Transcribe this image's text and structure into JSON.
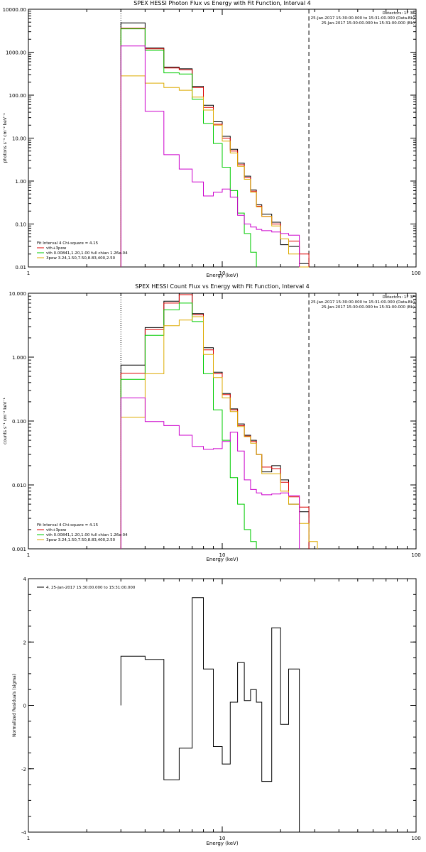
{
  "chart_data": [
    {
      "type": "line",
      "title": "SPEX HESSI Photon Flux vs Energy with Fit Function, Interval 4",
      "xlabel": "Energy (keV)",
      "ylabel": "photons s⁻¹ cm⁻² keV⁻¹",
      "xscale": "log",
      "yscale": "log",
      "xlim": [
        1,
        100
      ],
      "ylim": [
        0.01,
        10000
      ],
      "x_ticks": [
        "1",
        "10",
        "100"
      ],
      "y_ticks": [
        "0.01",
        "0.10",
        "1.00",
        "10.00",
        "100.00",
        "1000.00",
        "10000.00"
      ],
      "y_tick_values": [
        0.01,
        0.1,
        1,
        10,
        100,
        1000,
        10000
      ],
      "header_lines": [
        "Detectors: 1F 3F",
        "25-Jan-2017 15:30:00.000 to 15:31:00.000 (Data-Bk)",
        "25-Jan-2017 15:30:00.000 to 15:31:00.000 (Bk)"
      ],
      "legend_lines": [
        "Fit Interval 4   Chi-square = 4.15",
        "vth+3pow",
        "vth 0.00841,1.20,1.00  full chian 1.26e-04",
        "3pow 3.24,1.50,7.50,8.83,400,2.50"
      ],
      "vlines": [
        {
          "x": 3.0,
          "style": "dotted"
        },
        {
          "x": 28.0,
          "style": "dashed"
        }
      ],
      "bin_edges": [
        3,
        4,
        5,
        6,
        7,
        8,
        9,
        10,
        11,
        12,
        13,
        14,
        15,
        16,
        18,
        20,
        22,
        25,
        28,
        31
      ],
      "series": [
        {
          "name": "",
          "color": "#000000",
          "values": [
            4800,
            1250,
            450,
            410,
            160,
            58,
            24,
            11,
            5.5,
            2.6,
            1.3,
            0.62,
            0.28,
            0.17,
            0.11,
            0.033,
            0.03,
            0.012,
            null
          ]
        },
        {
          "name": "vth+3pow",
          "color": "#dd0000",
          "values": [
            3600,
            1200,
            430,
            390,
            150,
            52,
            21,
            10,
            5,
            2.4,
            1.2,
            0.58,
            0.26,
            0.15,
            0.1,
            0.045,
            0.04,
            0.02,
            null
          ]
        },
        {
          "name": "vth 0.00841,1.20,1.00  full chian 1.26e-04",
          "color": "#00cc00",
          "values": [
            3500,
            1100,
            330,
            310,
            80,
            22,
            7.5,
            2.1,
            0.6,
            0.18,
            0.06,
            0.022,
            null,
            null,
            null,
            null,
            null,
            null,
            null
          ]
        },
        {
          "name": "3pow 3.24,1.50,7.50,8.83,400,2.50",
          "color": "#ddaa00",
          "values": [
            280,
            190,
            150,
            130,
            90,
            45,
            20,
            8.5,
            4.5,
            2.2,
            1.1,
            0.55,
            0.25,
            0.15,
            0.09,
            0.045,
            0.02,
            0.01,
            null
          ]
        },
        {
          "name": "",
          "color": "#cc00cc",
          "values": [
            1400,
            42,
            4.1,
            1.9,
            0.95,
            0.45,
            0.55,
            0.65,
            0.42,
            0.16,
            0.1,
            0.085,
            0.075,
            0.07,
            0.065,
            0.06,
            0.055,
            null,
            null
          ]
        }
      ]
    },
    {
      "type": "line",
      "title": "SPEX HESSI Count Flux vs Energy with Fit Function, Interval 4",
      "xlabel": "Energy (keV)",
      "ylabel": "counts s⁻¹ cm⁻² keV⁻¹",
      "xscale": "log",
      "yscale": "log",
      "xlim": [
        1,
        100
      ],
      "ylim": [
        0.001,
        10
      ],
      "x_ticks": [
        "1",
        "10",
        "100"
      ],
      "y_ticks": [
        "0.001",
        "0.010",
        "0.100",
        "1.000",
        "10.000"
      ],
      "y_tick_values": [
        0.001,
        0.01,
        0.1,
        1,
        10
      ],
      "header_lines": [
        "Detectors: 1F 3F",
        "25-Jan-2017 15:30:00.000 to 15:31:00.000 (Data-Bk)",
        "25-Jan-2017 15:30:00.000 to 15:31:00.000 (Bk)"
      ],
      "legend_lines": [
        "Fit Interval 4   Chi-square = 4.15",
        "vth+3pow",
        "vth 0.00841,1.20,1.00  full chian 1.26e-04",
        "3pow 3.24,1.50,7.50,8.83,400,2.50"
      ],
      "vlines": [
        {
          "x": 3.0,
          "style": "dotted"
        },
        {
          "x": 28.0,
          "style": "dashed"
        }
      ],
      "bin_edges": [
        3,
        4,
        5,
        6,
        7,
        8,
        9,
        10,
        11,
        12,
        13,
        14,
        15,
        16,
        18,
        20,
        22,
        25,
        28,
        31
      ],
      "series": [
        {
          "name": "",
          "color": "#000000",
          "values": [
            0.75,
            2.9,
            7.5,
            10.2,
            4.8,
            1.4,
            0.58,
            0.27,
            0.155,
            0.09,
            0.06,
            0.05,
            0.03,
            0.016,
            0.02,
            0.012,
            0.005,
            0.0038,
            null
          ]
        },
        {
          "name": "vth+3pow",
          "color": "#dd0000",
          "values": [
            0.56,
            2.7,
            7,
            9.5,
            4.6,
            1.3,
            0.55,
            0.26,
            0.15,
            0.085,
            0.058,
            0.048,
            0.03,
            0.019,
            0.018,
            0.011,
            0.0065,
            0.0045,
            null
          ]
        },
        {
          "name": "vth 0.00841,1.20,1.00  full chian 1.26e-04",
          "color": "#00cc00",
          "values": [
            0.45,
            2.2,
            5.5,
            7,
            3.6,
            0.55,
            0.15,
            0.05,
            0.013,
            0.005,
            0.002,
            0.0013,
            null,
            null,
            null,
            null,
            null,
            null,
            null
          ]
        },
        {
          "name": "3pow 3.24,1.50,7.50,8.83,400,2.50",
          "color": "#ddaa00",
          "values": [
            0.115,
            0.55,
            3.1,
            3.8,
            4.3,
            1.1,
            0.48,
            0.23,
            0.14,
            0.082,
            0.057,
            0.045,
            0.03,
            0.015,
            0.015,
            0.008,
            0.005,
            0.0025,
            0.0013
          ]
        },
        {
          "name": "",
          "color": "#cc00cc",
          "values": [
            0.23,
            0.098,
            0.085,
            0.06,
            0.04,
            0.036,
            0.037,
            0.048,
            0.067,
            0.034,
            0.012,
            0.0085,
            0.0075,
            0.007,
            0.0072,
            0.0075,
            0.0068,
            null,
            null
          ]
        }
      ]
    },
    {
      "type": "line",
      "title": "",
      "xlabel": "Energy (keV)",
      "ylabel": "Normalized Residuals (sigma)",
      "xscale": "log",
      "yscale": "linear",
      "xlim": [
        1,
        100
      ],
      "ylim": [
        -4,
        4
      ],
      "x_ticks": [
        "1",
        "10",
        "100"
      ],
      "y_ticks": [
        "-4",
        "-2",
        "0",
        "2",
        "4"
      ],
      "y_tick_values": [
        -4,
        -2,
        0,
        2,
        4
      ],
      "legend_lines": [
        "4. 25-Jan-2017 15:30:00.000 to 15:31:00.000"
      ],
      "bin_edges": [
        3,
        4,
        5,
        6,
        7,
        8,
        9,
        10,
        11,
        12,
        13,
        14,
        15,
        16,
        18,
        20,
        22,
        25,
        28
      ],
      "series": [
        {
          "name": "4. 25-Jan-2017 15:30:00.000 to 15:31:00.000",
          "color": "#000000",
          "values": [
            1.55,
            1.45,
            -2.35,
            -1.35,
            3.4,
            1.15,
            -1.3,
            -1.85,
            0.1,
            1.35,
            0.15,
            0.5,
            0.1,
            -2.4,
            2.45,
            -0.6,
            1.15,
            null
          ]
        }
      ]
    }
  ]
}
